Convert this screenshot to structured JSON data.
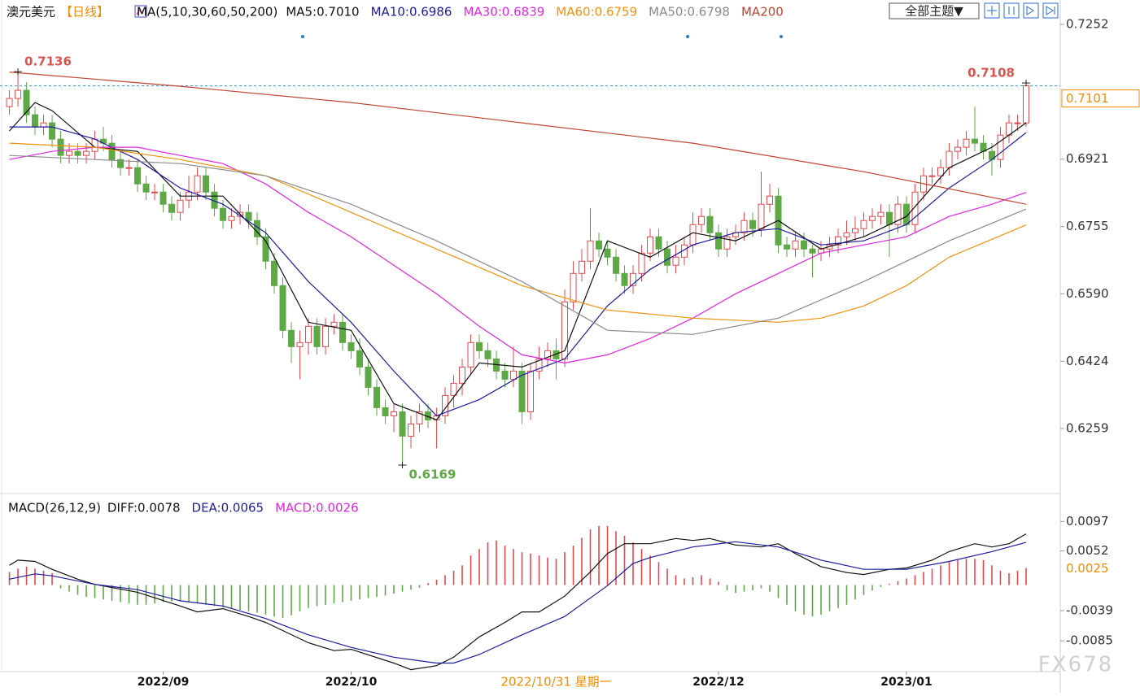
{
  "toolbar": {
    "theme_button": "全部主题▼"
  },
  "watermark": "FX678",
  "chart_data": [
    {
      "type": "candlestick",
      "title": "澳元美元",
      "subtitle": "【日线】",
      "indicator": "MA(5,10,30,60,50,200)",
      "up_color": "#e0484c",
      "down_color": "#5ea846",
      "open": [
        0.705,
        0.707,
        0.709,
        0.703,
        0.7,
        0.701,
        0.697,
        0.693,
        0.694,
        0.693,
        0.694,
        0.697,
        0.696,
        0.692,
        0.69,
        0.69,
        0.686,
        0.684,
        0.684,
        0.681,
        0.679,
        0.682,
        0.684,
        0.688,
        0.684,
        0.68,
        0.677,
        0.678,
        0.679,
        0.677,
        0.673,
        0.667,
        0.661,
        0.65,
        0.646,
        0.647,
        0.651,
        0.646,
        0.651,
        0.652,
        0.647,
        0.645,
        0.641,
        0.636,
        0.631,
        0.629,
        0.63,
        0.624,
        0.627,
        0.63,
        0.628,
        0.629,
        0.634,
        0.637,
        0.641,
        0.647,
        0.645,
        0.643,
        0.64,
        0.638,
        0.64,
        0.63,
        0.64,
        0.643,
        0.645,
        0.643,
        0.657,
        0.664,
        0.667,
        0.672,
        0.67,
        0.668,
        0.664,
        0.661,
        0.664,
        0.669,
        0.673,
        0.67,
        0.666,
        0.668,
        0.671,
        0.676,
        0.678,
        0.674,
        0.67,
        0.673,
        0.674,
        0.677,
        0.675,
        0.681,
        0.683,
        0.671,
        0.67,
        0.672,
        0.67,
        0.669,
        0.67,
        0.671,
        0.673,
        0.674,
        0.675,
        0.677,
        0.678,
        0.679,
        0.676,
        0.681,
        0.676,
        0.684,
        0.688,
        0.688,
        0.69,
        0.694,
        0.695,
        0.697,
        0.696,
        0.694,
        0.692,
        0.698,
        0.701,
        0.701
      ],
      "high": [
        0.709,
        0.7136,
        0.711,
        0.705,
        0.703,
        0.703,
        0.699,
        0.696,
        0.696,
        0.696,
        0.699,
        0.7,
        0.698,
        0.694,
        0.692,
        0.692,
        0.688,
        0.686,
        0.686,
        0.683,
        0.684,
        0.688,
        0.69,
        0.69,
        0.686,
        0.682,
        0.68,
        0.681,
        0.681,
        0.679,
        0.675,
        0.669,
        0.663,
        0.652,
        0.65,
        0.653,
        0.653,
        0.653,
        0.654,
        0.654,
        0.649,
        0.648,
        0.643,
        0.638,
        0.633,
        0.632,
        0.632,
        0.629,
        0.632,
        0.632,
        0.631,
        0.636,
        0.639,
        0.643,
        0.649,
        0.649,
        0.647,
        0.645,
        0.642,
        0.646,
        0.642,
        0.642,
        0.646,
        0.647,
        0.648,
        0.66,
        0.667,
        0.67,
        0.68,
        0.674,
        0.672,
        0.67,
        0.666,
        0.666,
        0.671,
        0.675,
        0.675,
        0.672,
        0.671,
        0.673,
        0.679,
        0.68,
        0.68,
        0.676,
        0.675,
        0.676,
        0.679,
        0.679,
        0.689,
        0.686,
        0.685,
        0.673,
        0.674,
        0.674,
        0.671,
        0.672,
        0.673,
        0.675,
        0.677,
        0.678,
        0.679,
        0.68,
        0.681,
        0.681,
        0.683,
        0.683,
        0.686,
        0.69,
        0.69,
        0.692,
        0.696,
        0.697,
        0.699,
        0.705,
        0.698,
        0.696,
        0.7,
        0.703,
        0.703,
        0.7108
      ],
      "low": [
        0.703,
        0.705,
        0.701,
        0.698,
        0.698,
        0.695,
        0.691,
        0.691,
        0.691,
        0.691,
        0.692,
        0.694,
        0.69,
        0.688,
        0.688,
        0.684,
        0.682,
        0.682,
        0.679,
        0.677,
        0.677,
        0.68,
        0.682,
        0.682,
        0.678,
        0.675,
        0.675,
        0.676,
        0.675,
        0.671,
        0.665,
        0.659,
        0.648,
        0.642,
        0.638,
        0.644,
        0.644,
        0.644,
        0.649,
        0.645,
        0.643,
        0.639,
        0.634,
        0.629,
        0.627,
        0.625,
        0.6169,
        0.621,
        0.625,
        0.626,
        0.621,
        0.627,
        0.631,
        0.634,
        0.639,
        0.643,
        0.641,
        0.638,
        0.636,
        0.636,
        0.627,
        0.628,
        0.638,
        0.641,
        0.638,
        0.641,
        0.655,
        0.662,
        0.665,
        0.668,
        0.666,
        0.662,
        0.659,
        0.659,
        0.662,
        0.667,
        0.668,
        0.664,
        0.664,
        0.666,
        0.669,
        0.674,
        0.672,
        0.668,
        0.668,
        0.671,
        0.672,
        0.673,
        0.673,
        0.679,
        0.669,
        0.668,
        0.668,
        0.668,
        0.663,
        0.667,
        0.668,
        0.669,
        0.671,
        0.672,
        0.673,
        0.675,
        0.676,
        0.668,
        0.674,
        0.674,
        0.674,
        0.682,
        0.686,
        0.686,
        0.688,
        0.692,
        0.693,
        0.694,
        0.692,
        0.688,
        0.69,
        0.696,
        0.699,
        0.7
      ],
      "close": [
        0.707,
        0.709,
        0.703,
        0.7,
        0.701,
        0.697,
        0.693,
        0.694,
        0.693,
        0.694,
        0.697,
        0.696,
        0.692,
        0.69,
        0.69,
        0.686,
        0.684,
        0.684,
        0.681,
        0.679,
        0.682,
        0.684,
        0.688,
        0.684,
        0.68,
        0.677,
        0.678,
        0.679,
        0.677,
        0.673,
        0.667,
        0.661,
        0.65,
        0.646,
        0.647,
        0.651,
        0.646,
        0.651,
        0.652,
        0.647,
        0.645,
        0.641,
        0.636,
        0.631,
        0.629,
        0.63,
        0.624,
        0.627,
        0.63,
        0.628,
        0.629,
        0.634,
        0.637,
        0.641,
        0.647,
        0.645,
        0.643,
        0.64,
        0.638,
        0.64,
        0.63,
        0.64,
        0.643,
        0.645,
        0.643,
        0.657,
        0.664,
        0.667,
        0.672,
        0.67,
        0.668,
        0.664,
        0.661,
        0.664,
        0.669,
        0.673,
        0.67,
        0.666,
        0.668,
        0.671,
        0.676,
        0.678,
        0.674,
        0.67,
        0.673,
        0.674,
        0.677,
        0.675,
        0.681,
        0.683,
        0.671,
        0.67,
        0.672,
        0.67,
        0.669,
        0.67,
        0.671,
        0.673,
        0.674,
        0.675,
        0.677,
        0.678,
        0.679,
        0.676,
        0.681,
        0.676,
        0.684,
        0.688,
        0.688,
        0.69,
        0.694,
        0.695,
        0.697,
        0.696,
        0.694,
        0.692,
        0.698,
        0.701,
        0.701,
        0.7101
      ],
      "series": [
        {
          "name": "MA5:0.7010",
          "color": "#111111",
          "x": [
            0,
            3,
            5,
            10,
            15,
            20,
            25,
            30,
            35,
            40,
            45,
            50,
            55,
            60,
            65,
            70,
            75,
            80,
            85,
            90,
            95,
            100,
            105,
            110,
            115,
            119
          ],
          "values": [
            0.699,
            0.706,
            0.704,
            0.695,
            0.694,
            0.683,
            0.683,
            0.672,
            0.652,
            0.65,
            0.632,
            0.628,
            0.642,
            0.641,
            0.645,
            0.672,
            0.668,
            0.674,
            0.672,
            0.677,
            0.67,
            0.673,
            0.678,
            0.69,
            0.695,
            0.701
          ]
        },
        {
          "name": "MA10:0.6986",
          "color": "#1c1c9e",
          "x": [
            0,
            5,
            10,
            15,
            20,
            25,
            30,
            35,
            40,
            45,
            50,
            55,
            60,
            65,
            70,
            75,
            80,
            85,
            90,
            95,
            100,
            105,
            110,
            115,
            119
          ],
          "values": [
            0.7,
            0.7,
            0.697,
            0.692,
            0.685,
            0.681,
            0.674,
            0.662,
            0.652,
            0.64,
            0.629,
            0.633,
            0.639,
            0.643,
            0.656,
            0.665,
            0.671,
            0.674,
            0.675,
            0.671,
            0.672,
            0.676,
            0.685,
            0.692,
            0.6986
          ]
        },
        {
          "name": "MA30:0.6839",
          "color": "#e025e0",
          "x": [
            0,
            5,
            10,
            15,
            20,
            25,
            30,
            35,
            40,
            45,
            50,
            55,
            60,
            65,
            70,
            75,
            80,
            85,
            90,
            95,
            100,
            105,
            110,
            115,
            119
          ],
          "values": [
            0.692,
            0.694,
            0.695,
            0.695,
            0.693,
            0.691,
            0.686,
            0.679,
            0.673,
            0.666,
            0.659,
            0.651,
            0.644,
            0.642,
            0.644,
            0.648,
            0.653,
            0.659,
            0.664,
            0.669,
            0.671,
            0.673,
            0.678,
            0.681,
            0.6839
          ]
        },
        {
          "name": "MA60:0.6759",
          "color": "#f0920e",
          "x": [
            0,
            10,
            20,
            30,
            40,
            50,
            60,
            70,
            80,
            90,
            95,
            100,
            105,
            110,
            119
          ],
          "values": [
            0.696,
            0.695,
            0.692,
            0.688,
            0.679,
            0.67,
            0.661,
            0.655,
            0.653,
            0.652,
            0.653,
            0.656,
            0.661,
            0.668,
            0.6759
          ]
        },
        {
          "name": "MA50:0.6798",
          "color": "#8a8a8a",
          "x": [
            0,
            10,
            20,
            30,
            40,
            50,
            60,
            65,
            70,
            80,
            90,
            100,
            110,
            119
          ],
          "values": [
            0.693,
            0.692,
            0.691,
            0.688,
            0.681,
            0.672,
            0.662,
            0.656,
            0.65,
            0.649,
            0.653,
            0.662,
            0.672,
            0.6798
          ]
        },
        {
          "name": "MA200",
          "color": "#c0432f",
          "x": [
            0,
            20,
            40,
            60,
            80,
            100,
            119
          ],
          "values": [
            0.7135,
            0.71,
            0.706,
            0.701,
            0.696,
            0.689,
            0.681
          ]
        }
      ],
      "annotations": [
        {
          "x": 1,
          "value": 0.7136
        },
        {
          "x": 119,
          "value": 0.7108
        },
        {
          "x": 46,
          "value": 0.6169
        }
      ],
      "last_price": 0.7101,
      "xlim": [
        -1.1,
        123
      ],
      "ylim": [
        0.6099,
        0.7312
      ],
      "yticks": [
        0.7252,
        0.6921,
        0.6755,
        {
          "value": 0.659,
          "label": "0.6590"
        },
        0.6424,
        0.6259
      ]
    },
    {
      "type": "macd",
      "title": "MACD(26,12,9)",
      "series": [
        {
          "name": "DIFF:0.0078",
          "color": "#111111",
          "x": [
            0,
            1,
            3,
            5,
            8,
            10,
            15,
            20,
            22,
            25,
            28,
            30,
            35,
            38,
            40,
            45,
            47,
            50,
            52,
            55,
            58,
            60,
            62,
            65,
            68,
            70,
            72,
            75,
            78,
            80,
            82,
            85,
            88,
            90,
            92,
            95,
            98,
            100,
            103,
            105,
            108,
            110,
            113,
            115,
            117,
            119
          ],
          "values": [
            0.003,
            0.0038,
            0.0036,
            0.0024,
            0.0009,
            0.0001,
            -0.0011,
            -0.0032,
            -0.0041,
            -0.0036,
            -0.0048,
            -0.0057,
            -0.0088,
            -0.01,
            -0.0098,
            -0.0119,
            -0.0129,
            -0.0123,
            -0.011,
            -0.0079,
            -0.0057,
            -0.0041,
            -0.0041,
            -0.0017,
            0.002,
            0.0048,
            0.0063,
            0.0063,
            0.0071,
            0.0068,
            0.0071,
            0.0061,
            0.0058,
            0.0063,
            0.0048,
            0.0028,
            0.0019,
            0.0016,
            0.0024,
            0.0026,
            0.0038,
            0.0051,
            0.0063,
            0.0058,
            0.0063,
            0.0078
          ]
        },
        {
          "name": "DEA:0.0065",
          "color": "#1c1c9e",
          "x": [
            0,
            3,
            5,
            10,
            15,
            20,
            25,
            30,
            35,
            40,
            45,
            50,
            52,
            55,
            60,
            65,
            70,
            73,
            75,
            80,
            85,
            90,
            95,
            100,
            105,
            110,
            115,
            119
          ],
          "values": [
            0.0009,
            0.0017,
            0.0014,
            0.0001,
            -0.0007,
            -0.0024,
            -0.0032,
            -0.0051,
            -0.0076,
            -0.0095,
            -0.011,
            -0.0119,
            -0.0119,
            -0.0106,
            -0.0076,
            -0.0048,
            -0.0001,
            0.0033,
            0.0042,
            0.0058,
            0.0066,
            0.0058,
            0.0038,
            0.0024,
            0.0024,
            0.0036,
            0.0051,
            0.0065
          ]
        }
      ],
      "histogram": {
        "name": "MACD:0.0026",
        "color": "#e025e0",
        "up_color": "#e0484c",
        "down_color": "#5ea846",
        "values": [
          0.002,
          0.0025,
          0.0028,
          0.0025,
          0.0022,
          0.0018,
          -0.0005,
          -0.001,
          -0.0015,
          -0.0018,
          -0.002,
          -0.0022,
          -0.0024,
          -0.0026,
          -0.0028,
          -0.003,
          -0.003,
          -0.0028,
          -0.0026,
          -0.0025,
          -0.0025,
          -0.0026,
          -0.0028,
          -0.003,
          -0.0032,
          -0.0034,
          -0.0036,
          -0.0038,
          -0.004,
          -0.0042,
          -0.0045,
          -0.0048,
          -0.005,
          -0.0046,
          -0.004,
          -0.0035,
          -0.0032,
          -0.003,
          -0.0028,
          -0.0026,
          -0.0024,
          -0.0022,
          -0.002,
          -0.0018,
          -0.0016,
          -0.0013,
          -0.001,
          -0.0007,
          -0.0004,
          0.0003,
          0.0008,
          0.0015,
          0.0022,
          0.003,
          0.0045,
          0.0055,
          0.0065,
          0.0068,
          0.006,
          0.0055,
          0.005,
          0.0048,
          0.0045,
          0.0042,
          0.004,
          0.005,
          0.006,
          0.0072,
          0.0085,
          0.009,
          0.009,
          0.0082,
          0.0075,
          0.0065,
          0.0055,
          0.0045,
          0.0035,
          0.0025,
          0.0015,
          0.001,
          0.0012,
          0.0015,
          0.001,
          0.0005,
          -0.0008,
          -0.0012,
          -0.001,
          -0.0008,
          -0.0005,
          -0.001,
          -0.002,
          -0.003,
          -0.004,
          -0.0045,
          -0.0048,
          -0.0045,
          -0.004,
          -0.0035,
          -0.003,
          -0.0022,
          -0.0015,
          -0.0008,
          -0.0003,
          0.0002,
          0.0006,
          0.001,
          0.0015,
          0.002,
          0.0025,
          0.003,
          0.0035,
          0.0038,
          0.004,
          0.004,
          0.0038,
          0.003,
          0.0022,
          0.0018,
          0.0022,
          0.0026
        ]
      },
      "marker_value": 0.0025,
      "xlim": [
        -1.1,
        123
      ],
      "ylim": [
        -0.0132,
        0.0111
      ],
      "yticks": [
        0.0097,
        0.0052,
        -0.0039,
        -0.0085
      ],
      "xticks": [
        {
          "value": 18,
          "label": "2022/09"
        },
        {
          "value": 40,
          "label": "2022/10"
        },
        {
          "value": 83,
          "label": "2022/12"
        },
        {
          "value": 105,
          "label": "2023/01"
        }
      ],
      "cursor_tick": {
        "value": 64,
        "label": "2022/10/31 星期一"
      }
    }
  ]
}
